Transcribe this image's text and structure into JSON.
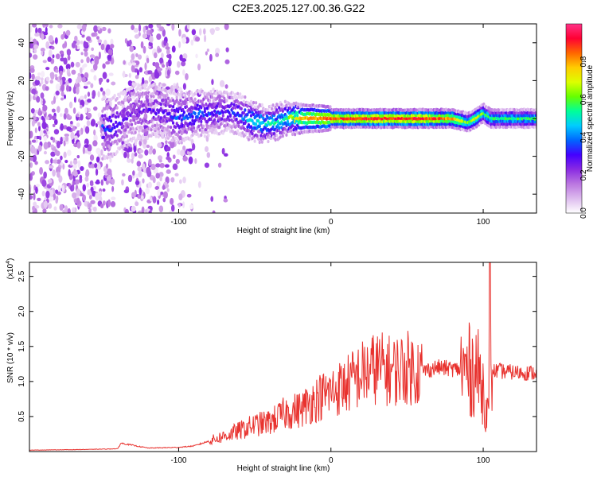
{
  "figure": {
    "title": "C2E3.2025.127.00.36.G22"
  },
  "chart_data": [
    {
      "type": "heatmap",
      "xlabel": "Height of straight line (km)",
      "ylabel": "Frequency (Hz)",
      "xlim": [
        -198,
        135
      ],
      "ylim": [
        -50,
        50
      ],
      "xticks": [
        -100,
        0,
        100
      ],
      "yticks": [
        -40,
        -20,
        0,
        20,
        40
      ],
      "colorbar": {
        "label": "Normalized spectral amplitude",
        "range": [
          0,
          1
        ],
        "ticks": [
          "0.0",
          "0.2",
          "0.4",
          "0.6",
          "0.8"
        ],
        "colors": [
          "#ffffff",
          "#ddbbee",
          "#bb77e0",
          "#8a2be2",
          "#4400ff",
          "#0066ff",
          "#00ccff",
          "#00ff99",
          "#66ff00",
          "#ddff00",
          "#ffcc00",
          "#ff6600",
          "#ff0033",
          "#ff3388"
        ]
      },
      "ridge": {
        "comment_free": true,
        "x": [
          -145,
          -140,
          -130,
          -110,
          -100,
          -90,
          -80,
          -70,
          -60,
          -50,
          -40,
          -30,
          -20,
          -10,
          0,
          20,
          40,
          60,
          80,
          90,
          95,
          100,
          105,
          120,
          135
        ],
        "freq": [
          -5,
          -3,
          3,
          4,
          0,
          2,
          3,
          4,
          2,
          -2,
          -3,
          0,
          0,
          0,
          0,
          0,
          0,
          0,
          0,
          -2,
          0,
          3,
          0,
          0,
          0
        ],
        "amplitude": [
          0.35,
          0.3,
          0.2,
          0.3,
          0.35,
          0.35,
          0.35,
          0.3,
          0.35,
          0.5,
          0.5,
          0.55,
          0.75,
          0.8,
          0.85,
          0.9,
          0.9,
          0.9,
          0.8,
          0.6,
          0.7,
          0.6,
          0.55,
          0.55,
          0.55
        ]
      }
    },
    {
      "type": "line",
      "xlabel": "Height of straight line (km)",
      "ylabel": "SNR (10 * v/v)",
      "y_multiplier_label": "(x10",
      "y_multiplier_exp": "4",
      "xlim": [
        -198,
        135
      ],
      "ylim": [
        0,
        27000
      ],
      "xticks": [
        -100,
        0,
        100
      ],
      "yticks": [
        "0.5",
        "1.0",
        "1.5",
        "2.0",
        "2.5"
      ],
      "ytick_values": [
        5000,
        10000,
        15000,
        20000,
        25000
      ],
      "series": [
        {
          "color": "#e8322e",
          "x": [
            -198,
            -180,
            -160,
            -140,
            -138,
            -120,
            -100,
            -90,
            -80,
            -70,
            -60,
            -50,
            -40,
            -30,
            -20,
            -10,
            0,
            10,
            20,
            30,
            40,
            50,
            60,
            70,
            80,
            90,
            95,
            100,
            104,
            106,
            110,
            120,
            135
          ],
          "y": [
            200,
            250,
            300,
            400,
            1200,
            500,
            600,
            800,
            1500,
            2200,
            3000,
            3800,
            4200,
            5500,
            6000,
            7500,
            8500,
            9500,
            11000,
            12000,
            11500,
            12000,
            11500,
            12000,
            11800,
            11500,
            12000,
            9000,
            4000,
            11500,
            11500,
            11300,
            11200
          ]
        }
      ]
    }
  ]
}
